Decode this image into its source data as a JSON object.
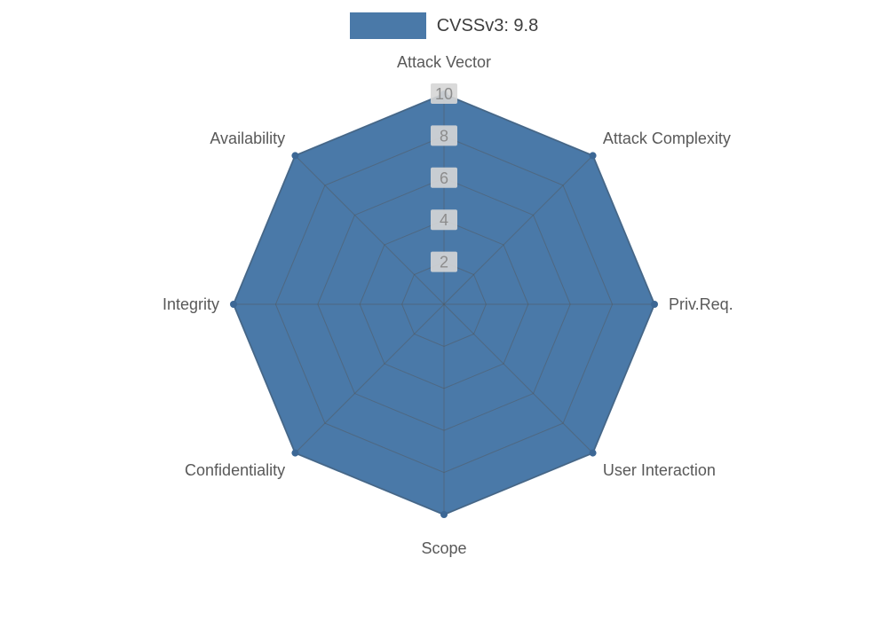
{
  "legend": {
    "label": "CVSSv3: 9.8"
  },
  "chart_data": {
    "type": "radar",
    "title": "",
    "categories": [
      "Attack Vector",
      "Attack Complexity",
      "Priv.Req.",
      "User Interaction",
      "Scope",
      "Confidentiality",
      "Integrity",
      "Availability"
    ],
    "series": [
      {
        "name": "CVSSv3: 9.8",
        "values": [
          10,
          10,
          10,
          10,
          10,
          10,
          10,
          10
        ]
      }
    ],
    "rlim": [
      0,
      10
    ],
    "ticks": [
      2,
      4,
      6,
      8,
      10
    ],
    "grid": true,
    "legend_position": "top",
    "fill_color": "#4a79a8",
    "edge_color": "#44719e",
    "marker_color": "#3c6795",
    "grid_color": "#555555",
    "label_color": "#595959",
    "tick_color": "#8c8c8c",
    "tick_bg_color": "#d6d6d6"
  }
}
